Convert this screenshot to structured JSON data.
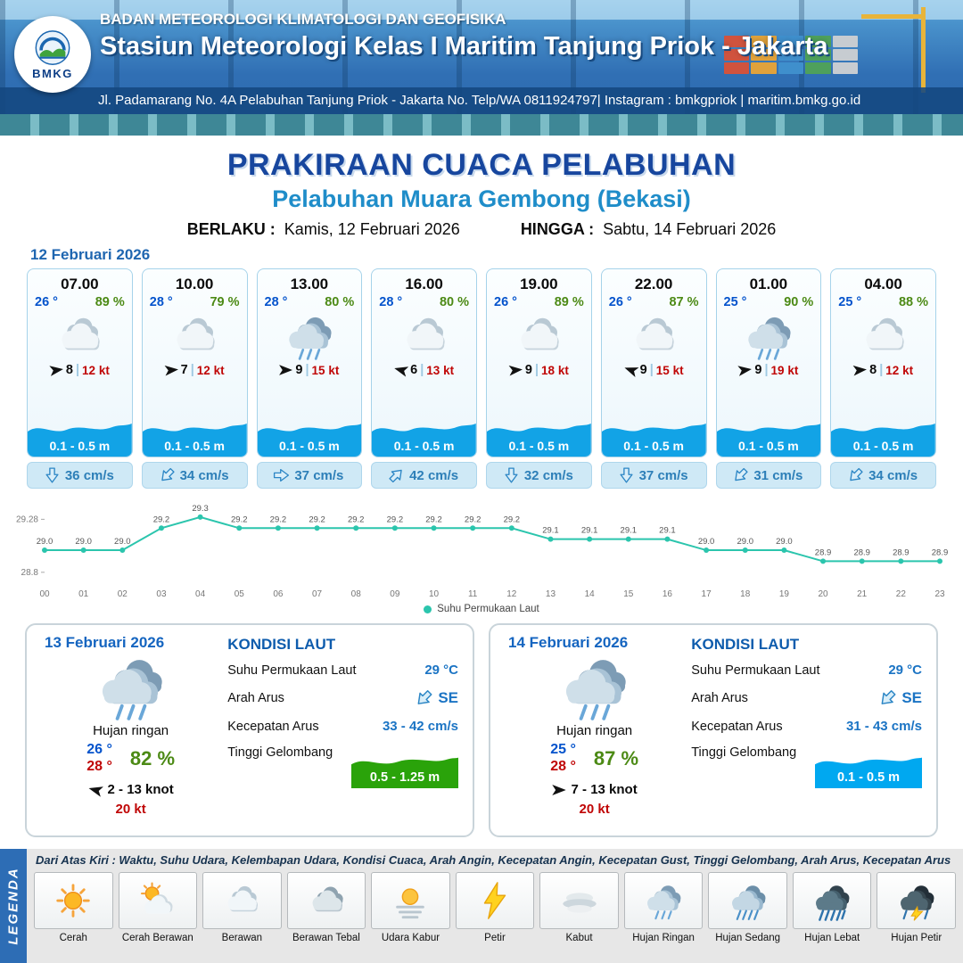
{
  "header": {
    "agency": "BADAN METEOROLOGI KLIMATOLOGI DAN GEOFISIKA",
    "station": "Stasiun Meteorologi Kelas I Maritim Tanjung Priok - Jakarta",
    "contact": "Jl. Padamarang No. 4A Pelabuhan Tanjung Priok - Jakarta No. Telp/WA 0811924797| Instagram : bmkgpriok | maritim.bmkg.go.id",
    "logo_text": "BMKG"
  },
  "title": {
    "main": "PRAKIRAAN CUACA PELABUHAN",
    "sub": "Pelabuhan Muara Gembong (Bekasi)",
    "valid_from_label": "BERLAKU :",
    "valid_from": "Kamis, 12 Februari 2026",
    "valid_to_label": "HINGGA :",
    "valid_to": "Sabtu, 14 Februari 2026"
  },
  "forecast_date": "12 Februari 2026",
  "hourly": [
    {
      "time": "07.00",
      "temp": "26 °",
      "rh": "89 %",
      "icon": "cloud",
      "wind": "8",
      "gust": "12 kt",
      "wind_rot": -8,
      "wave": "0.1 - 0.5 m",
      "current": "36 cm/s",
      "cur_rot": 0
    },
    {
      "time": "10.00",
      "temp": "28 °",
      "rh": "79 %",
      "icon": "cloud",
      "wind": "7",
      "gust": "12 kt",
      "wind_rot": -5,
      "wave": "0.1 - 0.5 m",
      "current": "34 cm/s",
      "cur_rot": 45
    },
    {
      "time": "13.00",
      "temp": "28 °",
      "rh": "80 %",
      "icon": "rain-light",
      "wind": "9",
      "gust": "15 kt",
      "wind_rot": 0,
      "wave": "0.1 - 0.5 m",
      "current": "37 cm/s",
      "cur_rot": -90
    },
    {
      "time": "16.00",
      "temp": "28 °",
      "rh": "80 %",
      "icon": "cloud",
      "wind": "6",
      "gust": "13 kt",
      "wind_rot": 195,
      "wave": "0.1 - 0.5 m",
      "current": "42 cm/s",
      "cur_rot": -135
    },
    {
      "time": "19.00",
      "temp": "26 °",
      "rh": "89 %",
      "icon": "cloud",
      "wind": "9",
      "gust": "18 kt",
      "wind_rot": -5,
      "wave": "0.1 - 0.5 m",
      "current": "32 cm/s",
      "cur_rot": 0
    },
    {
      "time": "22.00",
      "temp": "26 °",
      "rh": "87 %",
      "icon": "cloud",
      "wind": "9",
      "gust": "15 kt",
      "wind_rot": 200,
      "wave": "0.1 - 0.5 m",
      "current": "37 cm/s",
      "cur_rot": 0
    },
    {
      "time": "01.00",
      "temp": "25 °",
      "rh": "90 %",
      "icon": "rain-light",
      "wind": "9",
      "gust": "19 kt",
      "wind_rot": -8,
      "wave": "0.1 - 0.5 m",
      "current": "31 cm/s",
      "cur_rot": 45
    },
    {
      "time": "04.00",
      "temp": "25 °",
      "rh": "88 %",
      "icon": "cloud",
      "wind": "8",
      "gust": "12 kt",
      "wind_rot": -5,
      "wave": "0.1 - 0.5 m",
      "current": "34 cm/s",
      "cur_rot": 45
    }
  ],
  "chart_data": {
    "type": "line",
    "title": "Suhu Permukaan Laut",
    "legend": "Suhu Permukaan Laut",
    "x": [
      "00",
      "01",
      "02",
      "03",
      "04",
      "05",
      "06",
      "07",
      "08",
      "09",
      "10",
      "11",
      "12",
      "13",
      "14",
      "15",
      "16",
      "17",
      "18",
      "19",
      "20",
      "21",
      "22",
      "23"
    ],
    "values": [
      29.0,
      29.0,
      29.0,
      29.2,
      29.3,
      29.2,
      29.2,
      29.2,
      29.2,
      29.2,
      29.2,
      29.2,
      29.2,
      29.1,
      29.1,
      29.1,
      29.1,
      29.0,
      29.0,
      29.0,
      28.9,
      28.9,
      28.9,
      28.9
    ],
    "ylim": [
      28.75,
      29.38
    ],
    "yticks": [
      "29.28",
      "28.8"
    ],
    "line_color": "#2bc5ad",
    "xlabel": "",
    "ylabel": ""
  },
  "daily": [
    {
      "date": "13 Februari 2026",
      "icon": "rain-light",
      "condition": "Hujan ringan",
      "temp_min": "26 °",
      "temp_max": "28 °",
      "rh": "82 %",
      "wind": "2 - 13 knot",
      "wind_rot": 195,
      "gust": "20 kt",
      "sea_title": "KONDISI LAUT",
      "sst_label": "Suhu Permukaan Laut",
      "sst": "29 °C",
      "dir_label": "Arah Arus",
      "dir": "SE",
      "dir_rot": 45,
      "cur_label": "Kecepatan Arus",
      "cur": "33 - 42 cm/s",
      "wave_label": "Tinggi Gelombang",
      "wave": "0.5 - 1.25 m",
      "wave_color": "#2aa30a"
    },
    {
      "date": "14 Februari 2026",
      "icon": "rain-light",
      "condition": "Hujan ringan",
      "temp_min": "25 °",
      "temp_max": "28 °",
      "rh": "87 %",
      "wind": "7 - 13 knot",
      "wind_rot": 0,
      "gust": "20 kt",
      "sea_title": "KONDISI LAUT",
      "sst_label": "Suhu Permukaan Laut",
      "sst": "29 °C",
      "dir_label": "Arah Arus",
      "dir": "SE",
      "dir_rot": 45,
      "cur_label": "Kecepatan Arus",
      "cur": "31 - 43 cm/s",
      "wave_label": "Tinggi Gelombang",
      "wave": "0.1 - 0.5 m",
      "wave_color": "#00a8f0"
    }
  ],
  "legend": {
    "title": "LEGENDA",
    "description": "Dari Atas Kiri : Waktu, Suhu Udara, Kelembapan Udara, Kondisi Cuaca, Arah Angin, Kecepatan Angin, Kecepatan Gust, Tinggi Gelombang, Arah Arus, Kecepatan Arus",
    "items": [
      {
        "label": "Cerah",
        "icon": "sun"
      },
      {
        "label": "Cerah Berawan",
        "icon": "sun-cloud"
      },
      {
        "label": "Berawan",
        "icon": "cloud"
      },
      {
        "label": "Berawan Tebal",
        "icon": "cloud-thick"
      },
      {
        "label": "Udara Kabur",
        "icon": "haze"
      },
      {
        "label": "Petir",
        "icon": "bolt"
      },
      {
        "label": "Kabut",
        "icon": "fog"
      },
      {
        "label": "Hujan Ringan",
        "icon": "rain-light"
      },
      {
        "label": "Hujan Sedang",
        "icon": "rain-medium"
      },
      {
        "label": "Hujan Lebat",
        "icon": "rain-heavy"
      },
      {
        "label": "Hujan Petir",
        "icon": "storm"
      }
    ]
  }
}
